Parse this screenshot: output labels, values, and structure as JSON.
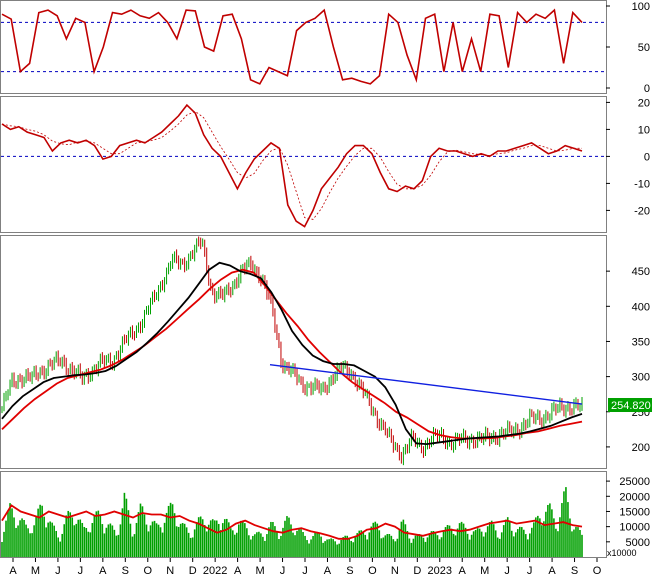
{
  "colors": {
    "price_up": "#00a000",
    "price_down": "#c00000",
    "ma_short": "#000000",
    "ma_long": "#e00000",
    "trendline": "#1020e0",
    "volume": "#00a000",
    "volume_ma": "#e00000",
    "ref_line": "#0000c0",
    "last_price_bg": "#00a000",
    "osc": "#c00000"
  },
  "x_axis": {
    "ticks": [
      "A",
      "M",
      "J",
      "J",
      "A",
      "S",
      "O",
      "N",
      "D",
      "2022",
      "A",
      "M",
      "J",
      "J",
      "A",
      "S",
      "O",
      "N",
      "D",
      "2023",
      "A",
      "M",
      "J",
      "J",
      "A",
      "S",
      "O"
    ]
  },
  "stochastic_panel": {
    "ticks": [
      "100",
      "50",
      "0"
    ],
    "ref_levels": [
      80,
      20
    ]
  },
  "momentum_panel": {
    "ticks": [
      "20",
      "10",
      "0",
      "-10",
      "-20"
    ]
  },
  "price_panel": {
    "ticks": [
      "450",
      "400",
      "350",
      "300",
      "250",
      "200"
    ],
    "last_price_label": "254.820"
  },
  "volume_panel": {
    "ticks": [
      "25000",
      "20000",
      "15000",
      "10000",
      "5000"
    ],
    "unit_label": "x10000"
  },
  "chart_data": [
    {
      "type": "line",
      "panel": "stochastic",
      "ylim": [
        0,
        100
      ],
      "ref_lines": [
        80,
        20
      ],
      "series": [
        {
          "values": [
            90,
            84,
            20,
            30,
            92,
            95,
            88,
            60,
            85,
            80,
            20,
            50,
            92,
            90,
            95,
            88,
            85,
            92,
            80,
            60,
            95,
            94,
            50,
            45,
            88,
            90,
            60,
            10,
            5,
            25,
            20,
            15,
            70,
            80,
            85,
            95,
            50,
            10,
            12,
            8,
            5,
            15,
            90,
            80,
            40,
            10,
            85,
            90,
            20,
            80,
            20,
            60,
            20,
            90,
            88,
            25,
            92,
            80,
            90,
            85,
            95,
            30,
            92,
            80
          ]
        }
      ]
    },
    {
      "type": "line",
      "panel": "momentum",
      "ylim": [
        -28,
        22
      ],
      "ref_lines": [
        0
      ],
      "series": [
        {
          "values": [
            12,
            10,
            11,
            9,
            8,
            7,
            2,
            5,
            6,
            5,
            6,
            4,
            -1,
            0,
            4,
            5,
            6,
            5,
            7,
            9,
            12,
            15,
            19,
            16,
            8,
            3,
            0,
            -6,
            -12,
            -6,
            -1,
            2,
            5,
            3,
            -18,
            -24,
            -26,
            -20,
            -12,
            -8,
            -4,
            1,
            4,
            4,
            1,
            -6,
            -12,
            -13,
            -11,
            -12,
            -9,
            0,
            3,
            2,
            2,
            1,
            0,
            1,
            0,
            2,
            2,
            3,
            4,
            5,
            3,
            1,
            2,
            4,
            3,
            2
          ]
        }
      ]
    },
    {
      "type": "line",
      "panel": "price",
      "ylim": [
        170,
        500
      ],
      "series": [
        {
          "values": [
            255,
            292,
            300,
            297,
            310,
            318,
            322,
            310,
            296,
            310,
            320,
            322,
            345,
            360,
            380,
            405,
            435,
            465,
            460,
            475,
            492,
            420,
            412,
            430,
            450,
            460,
            440,
            395,
            320,
            305,
            290,
            285,
            280,
            300,
            312,
            305,
            280,
            255,
            230,
            205,
            190,
            210,
            200,
            212,
            215,
            205,
            210,
            212,
            210,
            215,
            218,
            222,
            230,
            240,
            242,
            248,
            258,
            257,
            255
          ]
        },
        {
          "values": [
            240,
            258,
            272,
            282,
            292,
            298,
            300,
            302,
            303,
            305,
            308,
            315,
            325,
            335,
            348,
            362,
            378,
            395,
            412,
            432,
            452,
            462,
            458,
            450,
            446,
            440,
            420,
            395,
            365,
            345,
            330,
            322,
            318,
            318,
            316,
            308,
            300,
            285,
            260,
            225,
            205,
            204,
            206,
            208,
            210,
            212,
            213,
            214,
            215,
            217,
            219,
            222,
            226,
            230,
            236,
            242,
            247
          ]
        },
        {
          "values": [
            225,
            240,
            255,
            268,
            279,
            290,
            298,
            302,
            306,
            310,
            316,
            324,
            334,
            344,
            356,
            368,
            382,
            396,
            410,
            425,
            438,
            448,
            452,
            448,
            430,
            410,
            390,
            372,
            352,
            335,
            320,
            305,
            292,
            282,
            272,
            262,
            250,
            242,
            232,
            222,
            217,
            214,
            212,
            212,
            212,
            213,
            215,
            217,
            220,
            222,
            226,
            230,
            233,
            236
          ]
        }
      ]
    },
    {
      "type": "line",
      "panel": "price",
      "series": [
        {
          "x": [
            "2022-06",
            "2023-09"
          ],
          "values": [
            317,
            261
          ]
        }
      ]
    },
    {
      "type": "bar",
      "panel": "volume",
      "ylim": [
        0,
        28000
      ],
      "series": [
        {
          "values": [
            9000,
            18000,
            15000,
            11000,
            13000,
            20000,
            12000,
            8000,
            15000,
            17000,
            10000,
            14000,
            16000,
            12000,
            9000,
            22000,
            10000,
            18000,
            14000,
            11000,
            16000,
            19000,
            12000,
            9000,
            13000,
            15000,
            12000,
            16000,
            10000,
            13000,
            11000,
            8000,
            9000,
            12000,
            9500,
            14000,
            11000,
            8000,
            7500,
            9000,
            6000,
            6500,
            7000,
            8000,
            9000,
            11000,
            12000,
            8000,
            7000,
            13000,
            8000,
            7500,
            9000,
            8500,
            10000,
            11000,
            12000,
            10500,
            9000,
            11500,
            12000,
            9000,
            14000,
            10000,
            10000,
            11000,
            17000,
            18000,
            13000,
            24000,
            12000,
            8000
          ]
        },
        {
          "values": [
            12000,
            17000,
            15000,
            14000,
            13000,
            15000,
            14000,
            13000,
            14000,
            15000,
            13500,
            14000,
            15000,
            14000,
            13000,
            14500,
            14000,
            14000,
            13000,
            13500,
            12000,
            11000,
            9500,
            8000,
            9000,
            11000,
            12000,
            10500,
            9500,
            8500,
            8000,
            9000,
            9500,
            8500,
            7800,
            7000,
            6000,
            6000,
            7000,
            9000,
            9500,
            11000,
            10000,
            8000,
            7500,
            7000,
            7800,
            8500,
            9000,
            8500,
            9000,
            10000,
            11000,
            11500,
            12000,
            11000,
            11500,
            12000,
            10500,
            11000,
            11500,
            10500,
            10000
          ]
        }
      ]
    }
  ]
}
